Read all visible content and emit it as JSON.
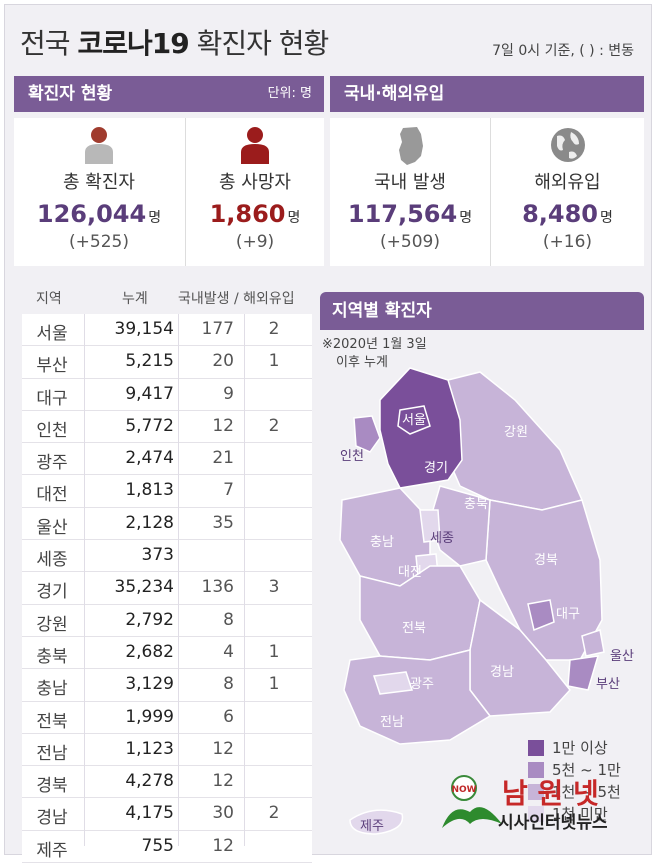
{
  "title_prefix": "전국",
  "title_bold": "코로나19",
  "title_suffix": "확진자 현황",
  "basis": "7일 0시 기준, ( ) : 변동",
  "confirmed_panel": {
    "header": "확진자 현황",
    "unit": "단위: 명",
    "total_label": "총 확진자",
    "total_value": "126,044",
    "total_change": "(+525)",
    "death_label": "총 사망자",
    "death_value": "1,860",
    "death_change": "(+9)",
    "unit_suffix": "명"
  },
  "origin_panel": {
    "header": "국내·해외유입",
    "domestic_label": "국내 발생",
    "domestic_value": "117,564",
    "domestic_change": "(+509)",
    "overseas_label": "해외유입",
    "overseas_value": "8,480",
    "overseas_change": "(+16)"
  },
  "table": {
    "headers": [
      "지역",
      "누계",
      "국내발생 / 해외유입"
    ],
    "rows": [
      {
        "region": "서울",
        "total": "39,154",
        "domestic": "177",
        "overseas": "2"
      },
      {
        "region": "부산",
        "total": "5,215",
        "domestic": "20",
        "overseas": "1"
      },
      {
        "region": "대구",
        "total": "9,417",
        "domestic": "9",
        "overseas": ""
      },
      {
        "region": "인천",
        "total": "5,772",
        "domestic": "12",
        "overseas": "2"
      },
      {
        "region": "광주",
        "total": "2,474",
        "domestic": "21",
        "overseas": ""
      },
      {
        "region": "대전",
        "total": "1,813",
        "domestic": "7",
        "overseas": ""
      },
      {
        "region": "울산",
        "total": "2,128",
        "domestic": "35",
        "overseas": ""
      },
      {
        "region": "세종",
        "total": "373",
        "domestic": "",
        "overseas": ""
      },
      {
        "region": "경기",
        "total": "35,234",
        "domestic": "136",
        "overseas": "3"
      },
      {
        "region": "강원",
        "total": "2,792",
        "domestic": "8",
        "overseas": ""
      },
      {
        "region": "충북",
        "total": "2,682",
        "domestic": "4",
        "overseas": "1"
      },
      {
        "region": "충남",
        "total": "3,129",
        "domestic": "8",
        "overseas": "1"
      },
      {
        "region": "전북",
        "total": "1,999",
        "domestic": "6",
        "overseas": ""
      },
      {
        "region": "전남",
        "total": "1,123",
        "domestic": "12",
        "overseas": ""
      },
      {
        "region": "경북",
        "total": "4,278",
        "domestic": "12",
        "overseas": ""
      },
      {
        "region": "경남",
        "total": "4,175",
        "domestic": "30",
        "overseas": "2"
      },
      {
        "region": "제주",
        "total": "755",
        "domestic": "12",
        "overseas": ""
      }
    ]
  },
  "map": {
    "header": "지역별 확진자",
    "note_line1": "※2020년 1월 3일",
    "note_line2": "이후 누계",
    "labels": {
      "seoul": "서울",
      "incheon": "인천",
      "gyeonggi": "경기",
      "gangwon": "강원",
      "chungbuk": "충북",
      "chungnam": "충남",
      "sejong": "세종",
      "daejeon": "대전",
      "gyeongbuk": "경북",
      "daegu": "대구",
      "jeonbuk": "전북",
      "gwangju": "광주",
      "jeonnam": "전남",
      "gyeongnam": "경남",
      "ulsan": "울산",
      "busan": "부산",
      "jeju": "제주"
    },
    "legend": [
      {
        "label": "1만 이상",
        "color": "#7a4f9a"
      },
      {
        "label": "5천 ~ 1만",
        "color": "#a98bc2"
      },
      {
        "label": "1천 ~ 5천",
        "color": "#c7b4d8"
      },
      {
        "label": "1천 미만",
        "color": "#e2d8ec"
      }
    ]
  },
  "watermark": {
    "title": "남 원 넷",
    "sub": "시사인터넷뉴스",
    "badge": "NOW"
  },
  "colors": {
    "accent": "#7a5c96",
    "confirmed": "#5a3d7a",
    "deaths": "#9b1c1c"
  }
}
